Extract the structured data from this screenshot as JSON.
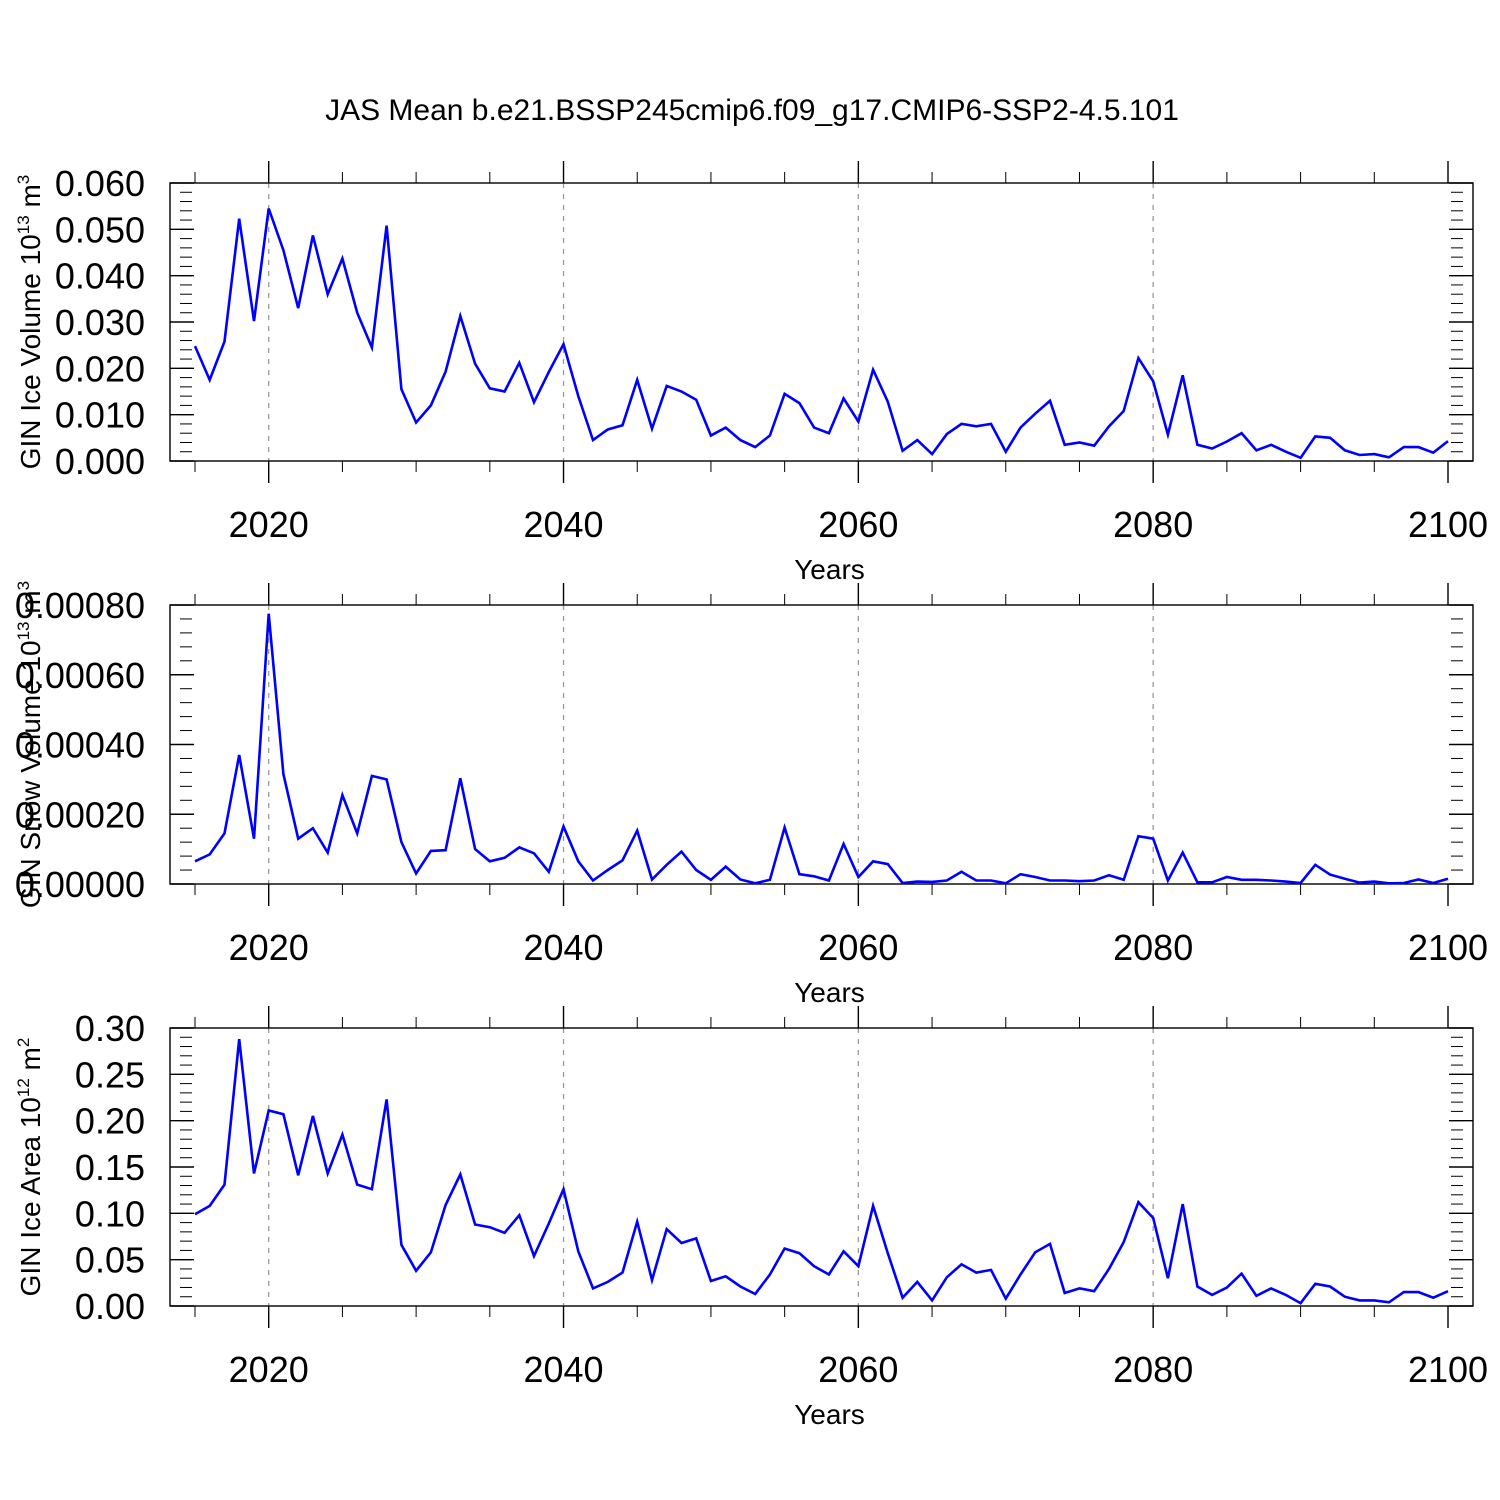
{
  "figure": {
    "title": "JAS Mean b.e21.BSSP245cmip6.f09_g17.CMIP6-SSP2-4.5.101",
    "line_color": "#0000ff",
    "grid_color": "#9a9a9a"
  },
  "chart_data": [
    {
      "type": "line",
      "xlabel": "Years",
      "ylabel": "GIN Ice Volume 10",
      "ylabel_exp": "13",
      "ylabel_unit": " m",
      "ylabel_unit_exp": "3",
      "xlim": [
        2015,
        2100
      ],
      "ylim": [
        0,
        0.06
      ],
      "x_ticks": [
        2020,
        2040,
        2060,
        2080,
        2100
      ],
      "y_ticks": [
        "0.000",
        "0.010",
        "0.020",
        "0.030",
        "0.040",
        "0.050",
        "0.060"
      ],
      "y_tick_values": [
        0,
        0.01,
        0.02,
        0.03,
        0.04,
        0.05,
        0.06
      ],
      "y_minor_step": 0.002,
      "x_grid": [
        2020,
        2040,
        2060,
        2080
      ],
      "x": [
        2015,
        2016,
        2017,
        2018,
        2019,
        2020,
        2021,
        2022,
        2023,
        2024,
        2025,
        2026,
        2027,
        2028,
        2029,
        2030,
        2031,
        2032,
        2033,
        2034,
        2035,
        2036,
        2037,
        2038,
        2039,
        2040,
        2041,
        2042,
        2043,
        2044,
        2045,
        2046,
        2047,
        2048,
        2049,
        2050,
        2051,
        2052,
        2053,
        2054,
        2055,
        2056,
        2057,
        2058,
        2059,
        2060,
        2061,
        2062,
        2063,
        2064,
        2065,
        2066,
        2067,
        2068,
        2069,
        2070,
        2071,
        2072,
        2073,
        2074,
        2075,
        2076,
        2077,
        2078,
        2079,
        2080,
        2081,
        2082,
        2083,
        2084,
        2085,
        2086,
        2087,
        2088,
        2089,
        2090,
        2091,
        2092,
        2093,
        2094,
        2095,
        2096,
        2097,
        2098,
        2099,
        2100
      ],
      "y": [
        0.0248,
        0.0175,
        0.0258,
        0.0523,
        0.0302,
        0.0545,
        0.0455,
        0.033,
        0.0487,
        0.036,
        0.0437,
        0.032,
        0.0245,
        0.0508,
        0.0155,
        0.0083,
        0.012,
        0.0193,
        0.0313,
        0.021,
        0.0157,
        0.015,
        0.0212,
        0.0127,
        0.0192,
        0.0252,
        0.014,
        0.0045,
        0.0068,
        0.0077,
        0.0175,
        0.007,
        0.0162,
        0.015,
        0.0132,
        0.0055,
        0.0072,
        0.0045,
        0.003,
        0.0055,
        0.0145,
        0.0125,
        0.0072,
        0.006,
        0.0135,
        0.0085,
        0.0197,
        0.0128,
        0.0022,
        0.0045,
        0.0015,
        0.0058,
        0.008,
        0.0075,
        0.008,
        0.002,
        0.0072,
        0.0102,
        0.013,
        0.0035,
        0.004,
        0.0033,
        0.0075,
        0.0108,
        0.0222,
        0.0172,
        0.0057,
        0.0185,
        0.0035,
        0.0027,
        0.0042,
        0.006,
        0.0023,
        0.0035,
        0.002,
        0.0007,
        0.0053,
        0.005,
        0.0023,
        0.0013,
        0.0015,
        0.0008,
        0.003,
        0.003,
        0.0018,
        0.0043
      ]
    },
    {
      "type": "line",
      "xlabel": "Years",
      "ylabel": "GIN Snow Volume 10",
      "ylabel_exp": "13",
      "ylabel_unit": " m",
      "ylabel_unit_exp": "3",
      "xlim": [
        2015,
        2100
      ],
      "ylim": [
        0,
        0.0008
      ],
      "x_ticks": [
        2020,
        2040,
        2060,
        2080,
        2100
      ],
      "y_ticks": [
        "0.00000",
        "0.00020",
        "0.00040",
        "0.00060",
        "0.00080"
      ],
      "y_tick_values": [
        0,
        0.0002,
        0.0004,
        0.0006,
        0.0008
      ],
      "y_minor_step": 4e-05,
      "x_grid": [
        2020,
        2040,
        2060,
        2080
      ],
      "x": [
        2015,
        2016,
        2017,
        2018,
        2019,
        2020,
        2021,
        2022,
        2023,
        2024,
        2025,
        2026,
        2027,
        2028,
        2029,
        2030,
        2031,
        2032,
        2033,
        2034,
        2035,
        2036,
        2037,
        2038,
        2039,
        2040,
        2041,
        2042,
        2043,
        2044,
        2045,
        2046,
        2047,
        2048,
        2049,
        2050,
        2051,
        2052,
        2053,
        2054,
        2055,
        2056,
        2057,
        2058,
        2059,
        2060,
        2061,
        2062,
        2063,
        2064,
        2065,
        2066,
        2067,
        2068,
        2069,
        2070,
        2071,
        2072,
        2073,
        2074,
        2075,
        2076,
        2077,
        2078,
        2079,
        2080,
        2081,
        2082,
        2083,
        2084,
        2085,
        2086,
        2087,
        2088,
        2089,
        2090,
        2091,
        2092,
        2093,
        2094,
        2095,
        2096,
        2097,
        2098,
        2099,
        2100
      ],
      "y": [
        6.5e-05,
        8.5e-05,
        0.000145,
        0.00037,
        0.00013,
        0.000775,
        0.000315,
        0.00013,
        0.00016,
        9e-05,
        0.000255,
        0.000145,
        0.00031,
        0.0003,
        0.00012,
        3e-05,
        9.5e-05,
        9.7e-05,
        0.000303,
        0.0001,
        6.5e-05,
        7.5e-05,
        0.000105,
        8.8e-05,
        3.5e-05,
        0.000165,
        6.5e-05,
        1e-05,
        4e-05,
        6.8e-05,
        0.000153,
        1.3e-05,
        5.5e-05,
        9.3e-05,
        4e-05,
        1.2e-05,
        5e-05,
        1.3e-05,
        2e-06,
        1.2e-05,
        0.000162,
        2.8e-05,
        2.2e-05,
        1e-05,
        0.000115,
        2e-05,
        6.5e-05,
        5.7e-05,
        3e-06,
        7e-06,
        6e-06,
        1e-05,
        3.5e-05,
        1e-05,
        1e-05,
        2e-06,
        2.8e-05,
        2e-05,
        1e-05,
        1e-05,
        8e-06,
        1e-05,
        2.5e-05,
        1.2e-05,
        0.000137,
        0.00013,
        1e-05,
        9e-05,
        5e-06,
        5e-06,
        2e-05,
        1.2e-05,
        1.2e-05,
        1e-05,
        7e-06,
        3e-06,
        5.5e-05,
        2.7e-05,
        1.5e-05,
        4e-06,
        7e-06,
        2e-06,
        3e-06,
        1.3e-05,
        3e-06,
        1.5e-05
      ]
    },
    {
      "type": "line",
      "xlabel": "Years",
      "ylabel": "GIN Ice Area 10",
      "ylabel_exp": "12",
      "ylabel_unit": " m",
      "ylabel_unit_exp": "2",
      "xlim": [
        2015,
        2100
      ],
      "ylim": [
        0,
        0.3
      ],
      "x_ticks": [
        2020,
        2040,
        2060,
        2080,
        2100
      ],
      "y_ticks": [
        "0.00",
        "0.05",
        "0.10",
        "0.15",
        "0.20",
        "0.25",
        "0.30"
      ],
      "y_tick_values": [
        0,
        0.05,
        0.1,
        0.15,
        0.2,
        0.25,
        0.3
      ],
      "y_minor_step": 0.01,
      "x_grid": [
        2020,
        2040,
        2060,
        2080
      ],
      "x": [
        2015,
        2016,
        2017,
        2018,
        2019,
        2020,
        2021,
        2022,
        2023,
        2024,
        2025,
        2026,
        2027,
        2028,
        2029,
        2030,
        2031,
        2032,
        2033,
        2034,
        2035,
        2036,
        2037,
        2038,
        2039,
        2040,
        2041,
        2042,
        2043,
        2044,
        2045,
        2046,
        2047,
        2048,
        2049,
        2050,
        2051,
        2052,
        2053,
        2054,
        2055,
        2056,
        2057,
        2058,
        2059,
        2060,
        2061,
        2062,
        2063,
        2064,
        2065,
        2066,
        2067,
        2068,
        2069,
        2070,
        2071,
        2072,
        2073,
        2074,
        2075,
        2076,
        2077,
        2078,
        2079,
        2080,
        2081,
        2082,
        2083,
        2084,
        2085,
        2086,
        2087,
        2088,
        2089,
        2090,
        2091,
        2092,
        2093,
        2094,
        2095,
        2096,
        2097,
        2098,
        2099,
        2100
      ],
      "y": [
        0.099,
        0.108,
        0.131,
        0.288,
        0.143,
        0.211,
        0.207,
        0.141,
        0.205,
        0.143,
        0.185,
        0.131,
        0.126,
        0.223,
        0.066,
        0.038,
        0.058,
        0.109,
        0.142,
        0.088,
        0.085,
        0.079,
        0.098,
        0.054,
        0.089,
        0.126,
        0.059,
        0.019,
        0.026,
        0.036,
        0.091,
        0.028,
        0.083,
        0.068,
        0.073,
        0.027,
        0.032,
        0.021,
        0.013,
        0.034,
        0.062,
        0.057,
        0.043,
        0.034,
        0.059,
        0.043,
        0.108,
        0.057,
        0.009,
        0.026,
        0.006,
        0.031,
        0.045,
        0.036,
        0.039,
        0.008,
        0.034,
        0.058,
        0.067,
        0.014,
        0.019,
        0.016,
        0.04,
        0.069,
        0.112,
        0.095,
        0.03,
        0.11,
        0.021,
        0.012,
        0.02,
        0.035,
        0.011,
        0.019,
        0.012,
        0.003,
        0.024,
        0.021,
        0.01,
        0.006,
        0.006,
        0.004,
        0.015,
        0.015,
        0.009,
        0.016
      ]
    }
  ]
}
